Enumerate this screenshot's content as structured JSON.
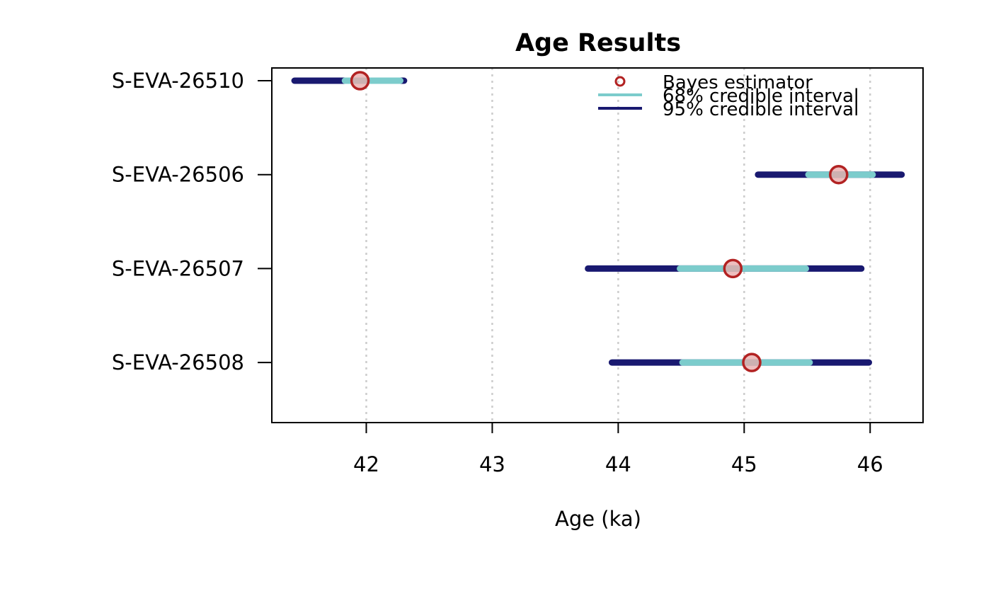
{
  "chart_data": {
    "type": "interval",
    "title": "Age Results",
    "xlabel": "Age (ka)",
    "ylabel": "",
    "xlim": [
      41.25,
      46.42
    ],
    "x_ticks": [
      "42",
      "43",
      "44",
      "45",
      "46"
    ],
    "grid": "vertical dotted at x ticks",
    "legend_position": "top-right",
    "legend": {
      "point_label": "Bayes estimator",
      "ci68_label": "68% credible interval",
      "ci95_label": "95% credible interval"
    },
    "colors": {
      "ci95": "#191970",
      "ci68": "#7ccccc",
      "estimator_stroke": "#b22222",
      "estimator_fill": "#e8a8a8",
      "grid": "#cccccc"
    },
    "samples": [
      {
        "name": "S-EVA-26510",
        "estimate": 41.95,
        "ci68": [
          41.83,
          42.27
        ],
        "ci95": [
          41.43,
          42.3
        ]
      },
      {
        "name": "S-EVA-26506",
        "estimate": 45.75,
        "ci68": [
          45.51,
          46.02
        ],
        "ci95": [
          45.11,
          46.25
        ]
      },
      {
        "name": "S-EVA-26507",
        "estimate": 44.91,
        "ci68": [
          44.49,
          45.49
        ],
        "ci95": [
          43.76,
          45.93
        ]
      },
      {
        "name": "S-EVA-26508",
        "estimate": 45.06,
        "ci68": [
          44.51,
          45.52
        ],
        "ci95": [
          43.95,
          45.99
        ]
      }
    ]
  }
}
